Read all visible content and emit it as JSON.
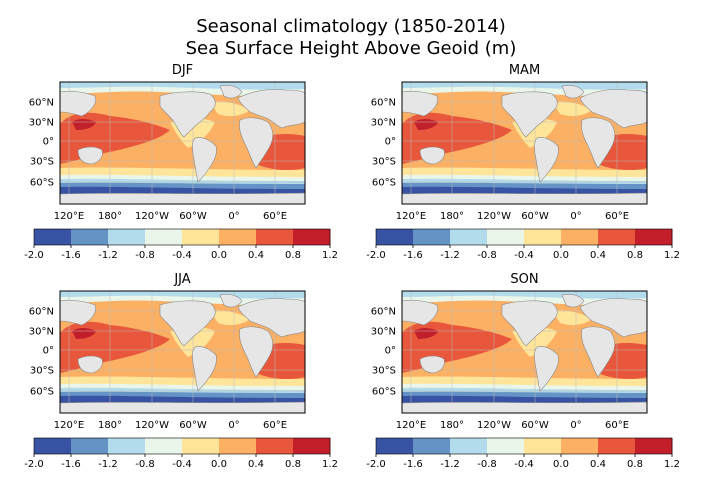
{
  "figure": {
    "title_line1": "Seasonal climatology  (1850-2014)",
    "title_line2": "Sea Surface Height Above Geoid (m)"
  },
  "chart_data": {
    "type": "contour-map",
    "variable": "Sea Surface Height Above Geoid",
    "units": "m",
    "period": "1850-2014",
    "panels": [
      {
        "title": "DJF"
      },
      {
        "title": "MAM"
      },
      {
        "title": "JJA"
      },
      {
        "title": "SON"
      }
    ],
    "lat_ticks": [
      "60°N",
      "30°N",
      "0°",
      "30°S",
      "60°S"
    ],
    "lon_ticks": [
      "120°E",
      "180°",
      "120°W",
      "60°W",
      "0°",
      "60°E"
    ],
    "colorbar": {
      "levels": [
        -2.0,
        -1.6,
        -1.2,
        -0.8,
        -0.4,
        0.0,
        0.4,
        0.8,
        1.2
      ],
      "tick_labels": [
        "-2.0",
        "-1.6",
        "-1.2",
        "-0.8",
        "-0.4",
        "0.0",
        "0.4",
        "0.8",
        "1.2"
      ],
      "colors": [
        "#3953a4",
        "#6593c6",
        "#b2dbeb",
        "#eaf6e9",
        "#fee59a",
        "#fbb063",
        "#e8563b",
        "#c21f2b"
      ]
    },
    "land_color": "#e6e6e6",
    "coast_color": "#888888"
  }
}
